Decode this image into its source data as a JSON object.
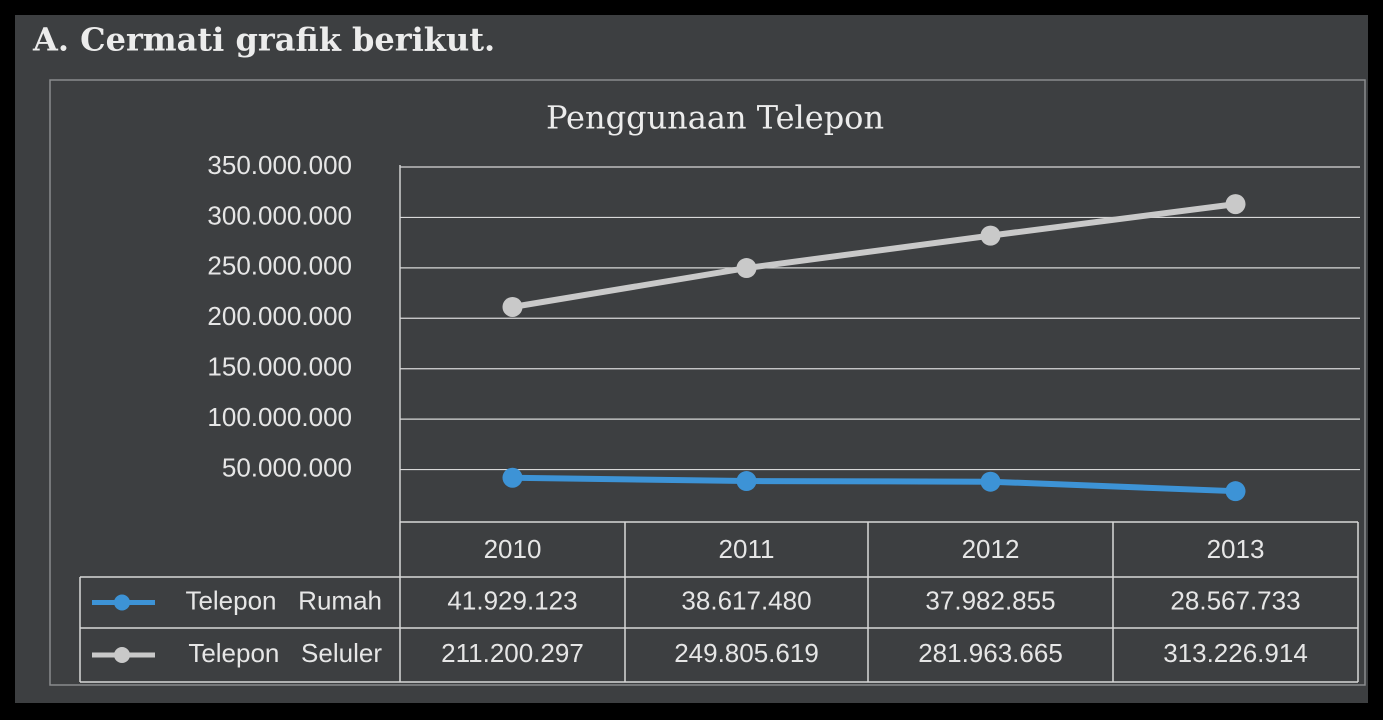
{
  "heading": "A. Cermati grafik berikut.",
  "chart_data": {
    "type": "line",
    "title": "Penggunaan Telepon",
    "categories": [
      "2010",
      "2011",
      "2012",
      "2013"
    ],
    "series": [
      {
        "name": "Telepon   Rumah",
        "color": "#3d93d6",
        "values": [
          41929123,
          38617480,
          37982855,
          28567733
        ],
        "value_labels": [
          "41.929.123",
          "38.617.480",
          "37.982.855",
          "28.567.733"
        ]
      },
      {
        "name": "Telepon   Seluler",
        "color": "#c9c9c9",
        "values": [
          211200297,
          249805619,
          281963665,
          313226914
        ],
        "value_labels": [
          "211.200.297",
          "249.805.619",
          "281.963.665",
          "313.226.914"
        ]
      }
    ],
    "ylim": [
      0,
      350000000
    ],
    "yticks": [
      {
        "value": 50000000,
        "label": "50.000.000"
      },
      {
        "value": 100000000,
        "label": "100.000.000"
      },
      {
        "value": 150000000,
        "label": "150.000.000"
      },
      {
        "value": 200000000,
        "label": "200.000.000"
      },
      {
        "value": 250000000,
        "label": "250.000.000"
      },
      {
        "value": 300000000,
        "label": "300.000.000"
      },
      {
        "value": 350000000,
        "label": "350.000.000"
      }
    ],
    "grid": true
  }
}
